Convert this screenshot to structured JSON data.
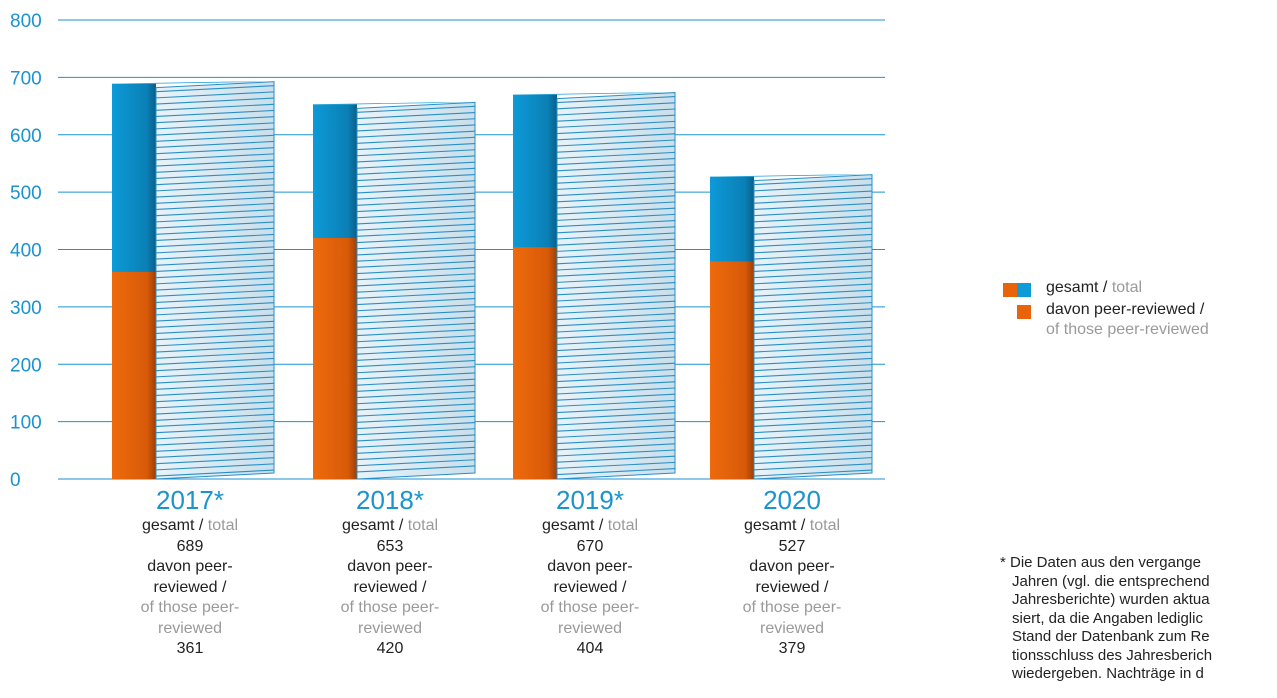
{
  "chart_data": {
    "type": "bar",
    "categories": [
      "2017*",
      "2018*",
      "2019*",
      "2020"
    ],
    "series": [
      {
        "name": "gesamt / total",
        "values": [
          689,
          653,
          670,
          527
        ]
      },
      {
        "name": "davon peer-reviewed / of those peer-reviewed",
        "values": [
          361,
          420,
          404,
          379
        ]
      }
    ],
    "yticks": [
      "0",
      "100",
      "200",
      "300",
      "400",
      "500",
      "600",
      "700",
      "800"
    ],
    "ylim": [
      0,
      800
    ],
    "grid": true,
    "legend_position": "right",
    "colors": {
      "total": "#0f9bd7",
      "peer": "#e8630a",
      "axis": "#1a93d0",
      "paper": "#ffffff",
      "paper_line": "#2a8fc4"
    }
  },
  "category_labels": [
    {
      "year": "2017*",
      "total_de": "gesamt /",
      "total_en": "total",
      "total_value": "689",
      "peer_de_1": "davon peer-",
      "peer_de_2": "reviewed /",
      "peer_en_1": "of those peer-",
      "peer_en_2": "reviewed",
      "peer_value": "361"
    },
    {
      "year": "2018*",
      "total_de": "gesamt /",
      "total_en": "total",
      "total_value": "653",
      "peer_de_1": "davon peer-",
      "peer_de_2": "reviewed /",
      "peer_en_1": "of those peer-",
      "peer_en_2": "reviewed",
      "peer_value": "420"
    },
    {
      "year": "2019*",
      "total_de": "gesamt /",
      "total_en": "total",
      "total_value": "670",
      "peer_de_1": "davon peer-",
      "peer_de_2": "reviewed /",
      "peer_en_1": "of those peer-",
      "peer_en_2": "reviewed",
      "peer_value": "404"
    },
    {
      "year": "2020",
      "total_de": "gesamt /",
      "total_en": "total",
      "total_value": "527",
      "peer_de_1": "davon peer-",
      "peer_de_2": "reviewed /",
      "peer_en_1": "of those peer-",
      "peer_en_2": "reviewed",
      "peer_value": "379"
    }
  ],
  "legend": {
    "total_de": "gesamt /",
    "total_en": "total",
    "peer_de": "davon peer-reviewed /",
    "peer_en": "of those peer-reviewed"
  },
  "footnote": [
    "* Die Daten aus den vergange",
    "Jahren (vgl. die entsprechend",
    "Jahresberichte) wurden aktua",
    "siert, da die Angaben lediglic",
    "Stand der Datenbank zum Re",
    "tionsschluss des Jahresberich",
    "wiedergeben. Nachträge in d"
  ]
}
